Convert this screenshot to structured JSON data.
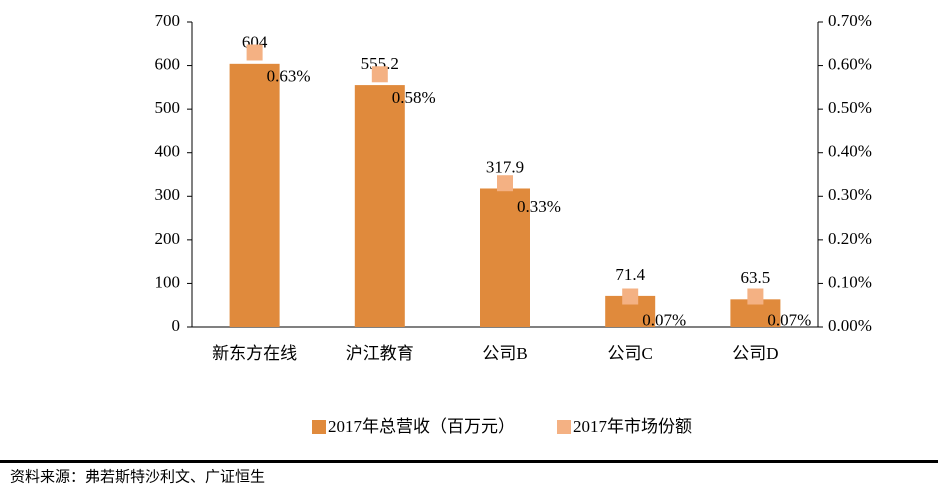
{
  "chart_data": {
    "type": "bar",
    "categories": [
      "新东方在线",
      "沪江教育",
      "公司B",
      "公司C",
      "公司D"
    ],
    "series": [
      {
        "name": "2017年总营收（百万元）",
        "color": "#e08a3c",
        "values": [
          604,
          555.2,
          317.9,
          71.4,
          63.5
        ]
      },
      {
        "name": "2017年市场份额",
        "color": "#f4b183",
        "type": "scatter",
        "axis": "y2",
        "values": [
          0.63,
          0.58,
          0.33,
          0.07,
          0.07
        ],
        "value_labels": [
          "0.63%",
          "0.58%",
          "0.33%",
          "0.07%",
          "0.07%"
        ]
      }
    ],
    "ylim": [
      0,
      700
    ],
    "yticks": [
      0,
      100,
      200,
      300,
      400,
      500,
      600,
      700
    ],
    "y2lim": [
      0,
      0.7
    ],
    "y2ticks": [
      {
        "value": 0,
        "label": "0.00%"
      },
      {
        "value": 0.1,
        "label": "0.10%"
      },
      {
        "value": 0.2,
        "label": "0.20%"
      },
      {
        "value": 0.3,
        "label": "0.30%"
      },
      {
        "value": 0.4,
        "label": "0.40%"
      },
      {
        "value": 0.5,
        "label": "0.50%"
      },
      {
        "value": 0.6,
        "label": "0.60%"
      },
      {
        "value": 0.7,
        "label": "0.70%"
      }
    ],
    "grid": false,
    "legend": "bottom",
    "source": "资料来源：弗若斯特沙利文、广证恒生"
  }
}
